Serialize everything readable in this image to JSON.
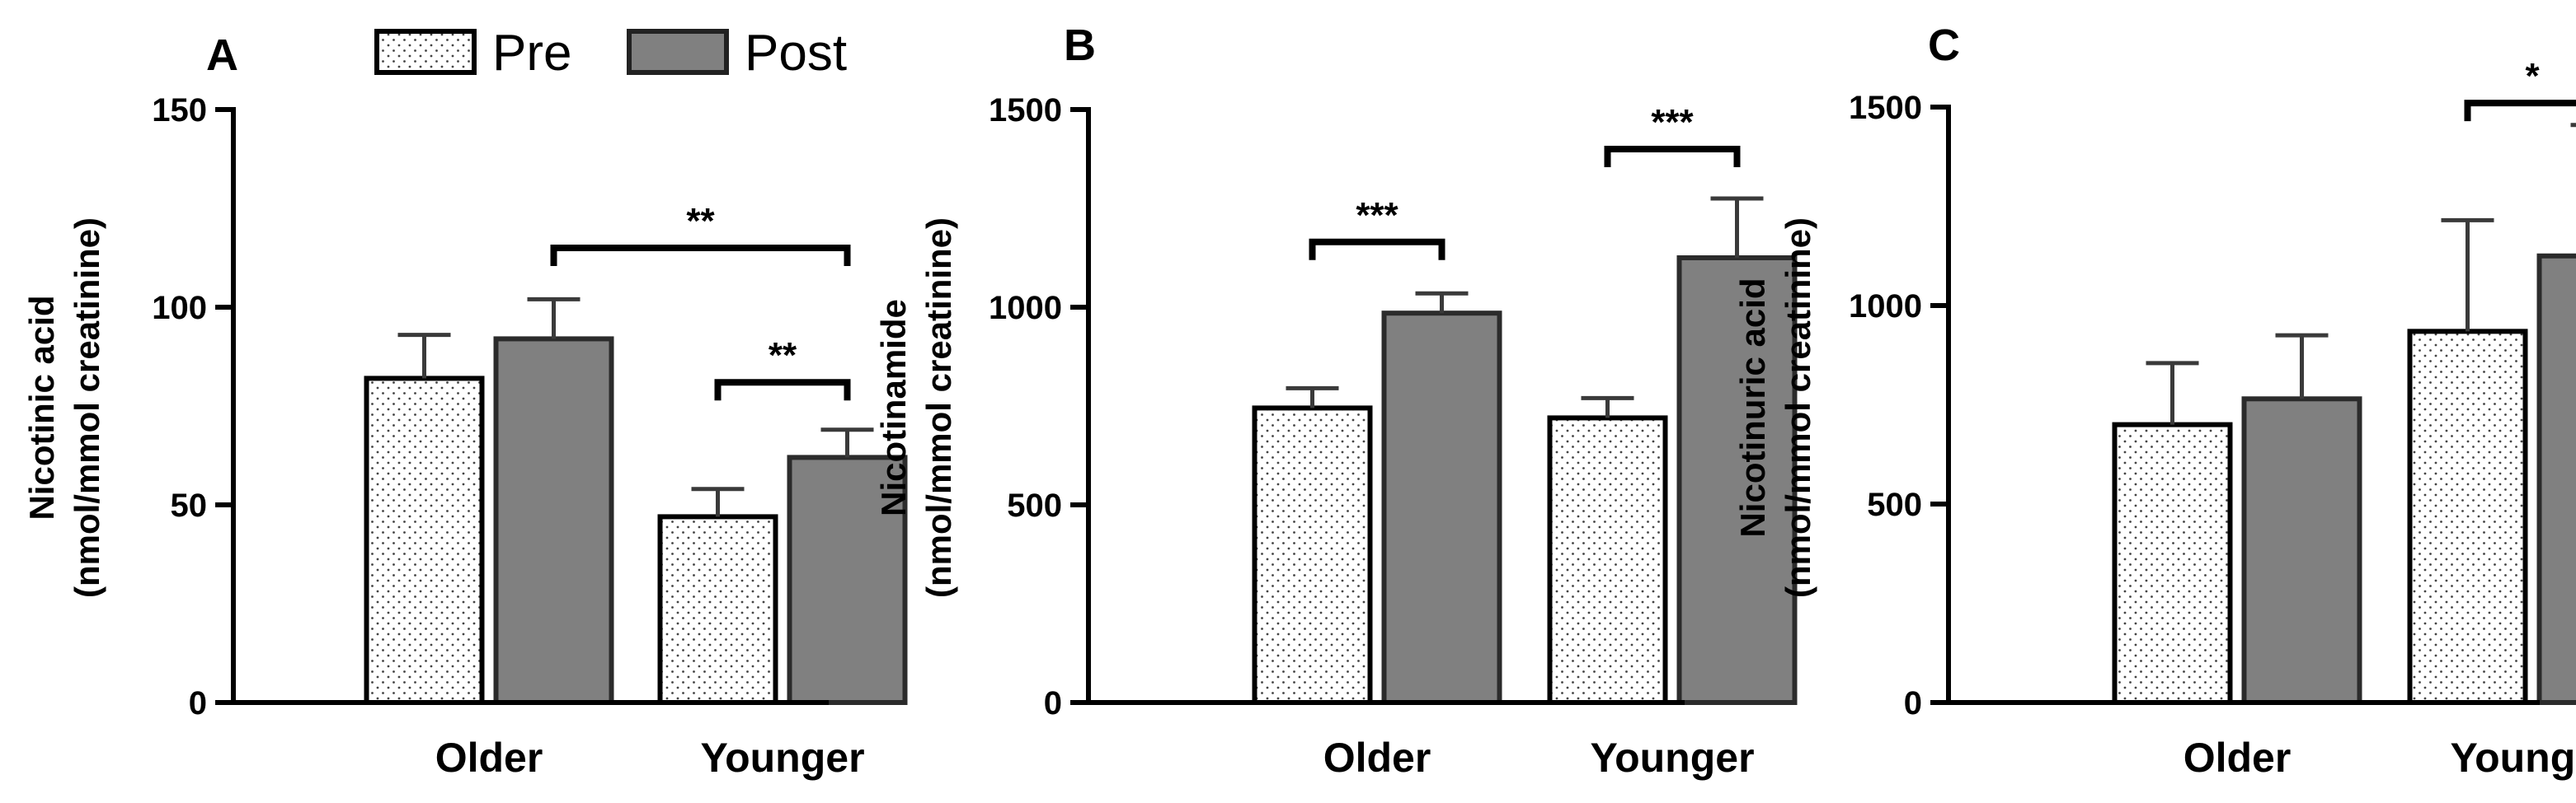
{
  "legend": {
    "items": [
      {
        "name": "Pre",
        "style": "dotted",
        "color": "#ffffff"
      },
      {
        "name": "Post",
        "style": "solid",
        "color": "#808080"
      }
    ]
  },
  "colors": {
    "pre_fill": "#ffffff",
    "post_fill": "#808080",
    "axis": "#000000",
    "bar_outline": "#000000",
    "error": "#3a3a3a"
  },
  "chart_data": [
    {
      "panel": "A",
      "type": "bar",
      "ylabel": [
        "Nicotinic acid",
        "(nmol/mmol creatinine)"
      ],
      "ylim": [
        0,
        150
      ],
      "yticks": [
        0,
        50,
        100,
        150
      ],
      "categories": [
        "Older",
        "Younger"
      ],
      "series": [
        {
          "name": "Pre",
          "values": [
            82,
            47
          ],
          "errors": [
            11,
            7
          ]
        },
        {
          "name": "Post",
          "values": [
            92,
            62
          ],
          "errors": [
            10,
            7
          ]
        }
      ],
      "significance": [
        {
          "label": "**",
          "from": {
            "category": 0,
            "series": 1
          },
          "to": {
            "category": 1,
            "series": 1
          },
          "y": 115
        },
        {
          "label": "**",
          "from": {
            "category": 1,
            "series": 0
          },
          "to": {
            "category": 1,
            "series": 1
          },
          "y": 81
        }
      ]
    },
    {
      "panel": "B",
      "type": "bar",
      "ylabel": [
        "Nicotinamide",
        "(nmol/mmol creatinine)"
      ],
      "ylim": [
        0,
        1500
      ],
      "yticks": [
        0,
        500,
        1000,
        1500
      ],
      "categories": [
        "Older",
        "Younger"
      ],
      "series": [
        {
          "name": "Pre",
          "values": [
            745,
            720
          ],
          "errors": [
            50,
            50
          ]
        },
        {
          "name": "Post",
          "values": [
            985,
            1125
          ],
          "errors": [
            50,
            150
          ]
        }
      ],
      "significance": [
        {
          "label": "***",
          "from": {
            "category": 0,
            "series": 0
          },
          "to": {
            "category": 0,
            "series": 1
          },
          "y": 1165
        },
        {
          "label": "***",
          "from": {
            "category": 1,
            "series": 0
          },
          "to": {
            "category": 1,
            "series": 1
          },
          "y": 1400
        }
      ]
    },
    {
      "panel": "C",
      "type": "bar",
      "ylabel": [
        "Nicotinuric acid",
        "(nmol/mmol creatinine)"
      ],
      "ylim": [
        0,
        1500
      ],
      "yticks": [
        0,
        500,
        1000,
        1500
      ],
      "categories": [
        "Older",
        "Younger"
      ],
      "series": [
        {
          "name": "Pre",
          "values": [
            700,
            935
          ],
          "errors": [
            155,
            280
          ]
        },
        {
          "name": "Post",
          "values": [
            765,
            1125
          ],
          "errors": [
            160,
            330
          ]
        }
      ],
      "significance": [
        {
          "label": "*",
          "from": {
            "category": 1,
            "series": 0
          },
          "to": {
            "category": 1,
            "series": 1
          },
          "y": 1510
        }
      ]
    }
  ]
}
